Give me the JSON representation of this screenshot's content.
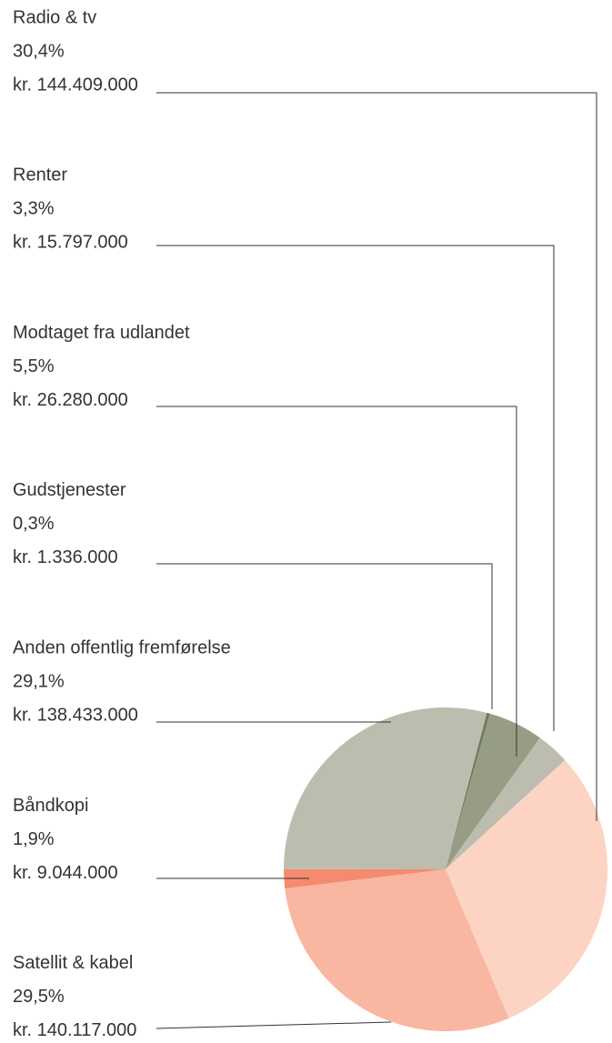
{
  "chart_data": {
    "type": "pie",
    "categories": [
      "Gudstjenester",
      "Modtaget fra udlandet",
      "Renter",
      "Radio & tv",
      "Satellit & kabel",
      "Båndkopi",
      "Anden offentlig fremførelse"
    ],
    "values": [
      0.3,
      5.5,
      3.3,
      30.4,
      29.5,
      1.9,
      29.1
    ],
    "value_labels": [
      "0,3%",
      "5,5%",
      "3,3%",
      "30,4%",
      "29,5%",
      "1,9%",
      "29,1%"
    ],
    "amount_labels": [
      "kr. 1.336.000",
      "kr. 26.280.000",
      "kr. 15.797.000",
      "kr. 144.409.000",
      "kr. 140.117.000",
      "kr. 9.044.000",
      "kr. 138.433.000"
    ],
    "colors": [
      "#6f7a5c",
      "#979c84",
      "#bcbdaf",
      "#fdd3c3",
      "#f9b6a0",
      "#f58a70",
      "#bcbdaf"
    ]
  }
}
